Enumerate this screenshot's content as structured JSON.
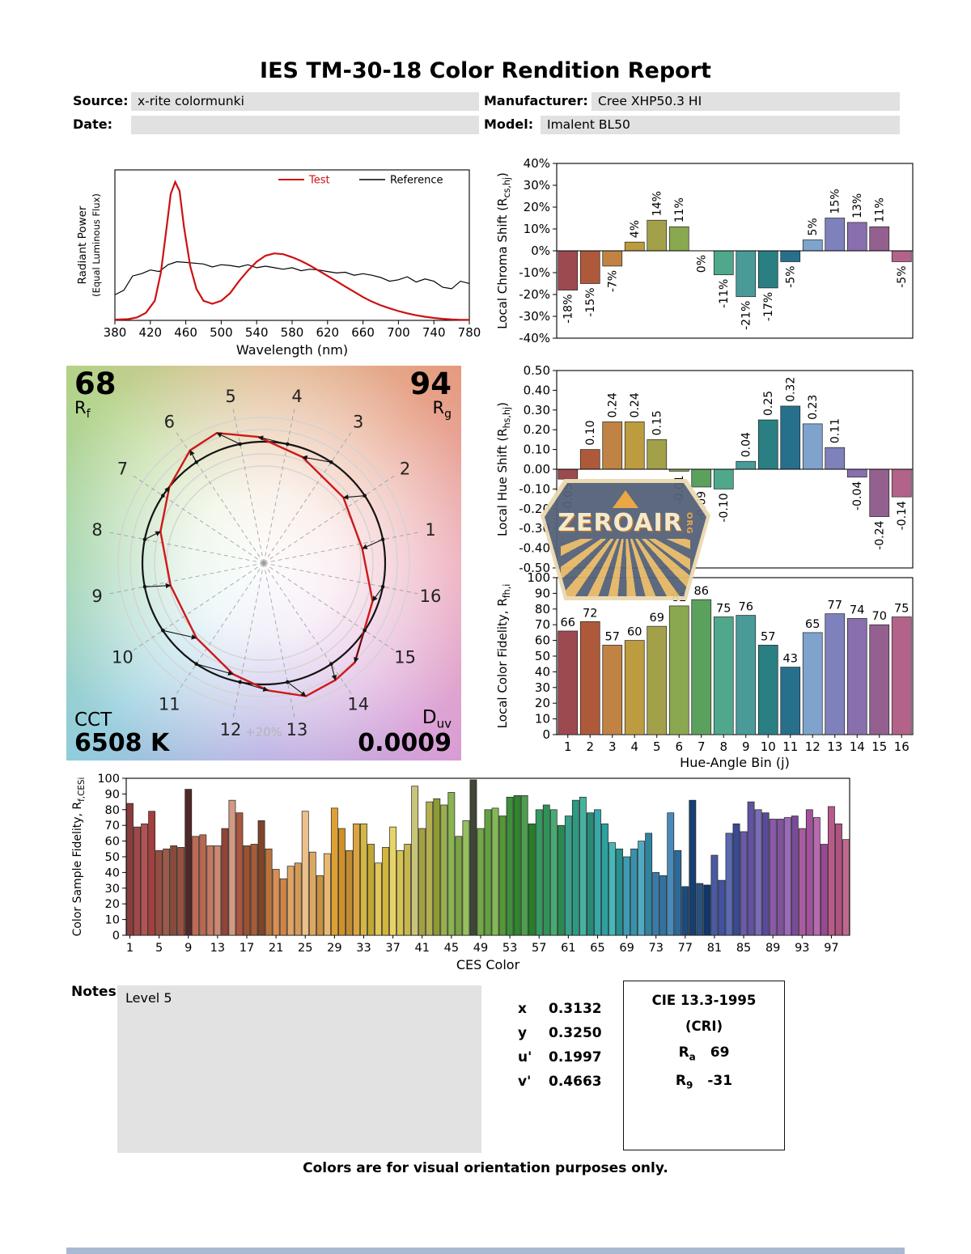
{
  "title": "IES TM-30-18 Color Rendition Report",
  "header": {
    "source_label": "Source:",
    "source_value": "x-rite colormunki",
    "manufacturer_label": "Manufacturer:",
    "manufacturer_value": "Cree XHP50.3 HI",
    "date_label": "Date:",
    "date_value": "",
    "model_label": "Model:",
    "model_value": "Imalent BL50"
  },
  "bin_colors": [
    "#9c4a50",
    "#ae5a3a",
    "#c08344",
    "#bd9c3f",
    "#a3a04a",
    "#8aa84f",
    "#5ca05e",
    "#4fa88c",
    "#4a9a9a",
    "#2a7f83",
    "#27708c",
    "#7fa3cc",
    "#7e81bb",
    "#8a6fae",
    "#94608f",
    "#b3638a"
  ],
  "chart_data": [
    {
      "id": "spd",
      "type": "line",
      "xlabel": "Wavelength (nm)",
      "ylabel": "Radiant Power",
      "ylabel2": "(Equal Luminous Flux)",
      "xlim": [
        380,
        780
      ],
      "ylim": [
        0,
        1
      ],
      "xticks": [
        380,
        420,
        460,
        500,
        540,
        580,
        620,
        660,
        700,
        740,
        780
      ],
      "series": [
        {
          "name": "Test",
          "color": "#cc1111",
          "x": [
            380,
            395,
            405,
            415,
            425,
            432,
            438,
            443,
            448,
            453,
            458,
            465,
            472,
            480,
            490,
            500,
            510,
            520,
            530,
            540,
            550,
            560,
            570,
            580,
            590,
            600,
            610,
            620,
            630,
            640,
            650,
            660,
            670,
            680,
            690,
            700,
            710,
            720,
            730,
            740,
            750,
            760,
            770,
            780
          ],
          "y": [
            0.005,
            0.008,
            0.02,
            0.05,
            0.13,
            0.32,
            0.6,
            0.84,
            0.92,
            0.86,
            0.62,
            0.36,
            0.21,
            0.13,
            0.11,
            0.13,
            0.18,
            0.26,
            0.33,
            0.39,
            0.43,
            0.445,
            0.44,
            0.42,
            0.395,
            0.365,
            0.33,
            0.295,
            0.26,
            0.225,
            0.19,
            0.155,
            0.125,
            0.1,
            0.08,
            0.062,
            0.047,
            0.034,
            0.024,
            0.016,
            0.01,
            0.006,
            0.004,
            0.003
          ]
        },
        {
          "name": "Reference",
          "color": "#000000",
          "x": [
            380,
            390,
            400,
            410,
            420,
            430,
            440,
            450,
            460,
            470,
            480,
            490,
            500,
            510,
            520,
            530,
            540,
            550,
            560,
            570,
            580,
            590,
            600,
            610,
            620,
            630,
            640,
            650,
            660,
            670,
            680,
            690,
            700,
            710,
            720,
            730,
            740,
            750,
            760,
            770,
            780
          ],
          "y": [
            0.17,
            0.2,
            0.295,
            0.31,
            0.335,
            0.325,
            0.37,
            0.39,
            0.385,
            0.38,
            0.375,
            0.355,
            0.37,
            0.365,
            0.355,
            0.37,
            0.35,
            0.36,
            0.35,
            0.34,
            0.35,
            0.33,
            0.34,
            0.335,
            0.325,
            0.315,
            0.32,
            0.3,
            0.31,
            0.3,
            0.285,
            0.26,
            0.27,
            0.29,
            0.255,
            0.275,
            0.26,
            0.22,
            0.21,
            0.26,
            0.245
          ]
        }
      ]
    },
    {
      "id": "chroma_shift",
      "type": "bar",
      "ylabel_parts": [
        [
          "Local Chroma Shift (R",
          false
        ],
        [
          "cs,hj",
          true
        ],
        [
          ")",
          false
        ]
      ],
      "ylim": [
        -40,
        40
      ],
      "yticks": [
        {
          "v": 40,
          "label": "40%"
        },
        {
          "v": 30,
          "label": "30%"
        },
        {
          "v": 20,
          "label": "20%"
        },
        {
          "v": 10,
          "label": "10%"
        },
        {
          "v": 0,
          "label": "0%"
        },
        {
          "v": -10,
          "label": "-10%"
        },
        {
          "v": -20,
          "label": "-20%"
        },
        {
          "v": -30,
          "label": "-30%"
        },
        {
          "v": -40,
          "label": "-40%"
        }
      ],
      "values": [
        -18,
        -15,
        -7,
        4,
        14,
        11,
        0,
        -11,
        -21,
        -17,
        -5,
        5,
        15,
        13,
        11,
        -5
      ],
      "value_labels": [
        "-18%",
        "-15%",
        "-7%",
        "4%",
        "14%",
        "11%",
        "0%",
        "-11%",
        "-21%",
        "-17%",
        "-5%",
        "5%",
        "15%",
        "13%",
        "11%",
        "-5%"
      ]
    },
    {
      "id": "hue_shift",
      "type": "bar",
      "ylabel_parts": [
        [
          "Local Hue Shift (R",
          false
        ],
        [
          "hs,hj",
          true
        ],
        [
          ")",
          false
        ]
      ],
      "ylim": [
        -0.5,
        0.5
      ],
      "yticks": [
        {
          "v": 0.5,
          "label": "0.50"
        },
        {
          "v": 0.4,
          "label": "0.40"
        },
        {
          "v": 0.3,
          "label": "0.30"
        },
        {
          "v": 0.2,
          "label": "0.20"
        },
        {
          "v": 0.1,
          "label": "0.10"
        },
        {
          "v": 0,
          "label": "0.00"
        },
        {
          "v": -0.1,
          "label": "-0.10"
        },
        {
          "v": -0.2,
          "label": "-0.20"
        },
        {
          "v": -0.3,
          "label": "-0.30"
        },
        {
          "v": -0.4,
          "label": "-0.40"
        },
        {
          "v": -0.5,
          "label": "-0.50"
        }
      ],
      "values": [
        -0.05,
        0.1,
        0.24,
        0.24,
        0.15,
        -0.01,
        -0.09,
        -0.1,
        0.04,
        0.25,
        0.32,
        0.23,
        0.11,
        -0.04,
        -0.24,
        -0.14
      ],
      "value_labels": [
        "-0.05",
        "0.10",
        "0.24",
        "0.24",
        "0.15",
        "-0.01",
        "-0.09",
        "-0.10",
        "0.04",
        "0.25",
        "0.32",
        "0.23",
        "0.11",
        "-0.04",
        "-0.24",
        "-0.14"
      ]
    },
    {
      "id": "local_fidelity",
      "type": "bar",
      "ylabel_parts": [
        [
          "Local Color Fidelity, R",
          false
        ],
        [
          "fh,i",
          true
        ]
      ],
      "xlabel": "Hue-Angle Bin (j)",
      "ylim": [
        0,
        100
      ],
      "yticks": [
        {
          "v": 100,
          "label": "100"
        },
        {
          "v": 90,
          "label": "90"
        },
        {
          "v": 80,
          "label": "80"
        },
        {
          "v": 70,
          "label": "70"
        },
        {
          "v": 60,
          "label": "60"
        },
        {
          "v": 50,
          "label": "50"
        },
        {
          "v": 40,
          "label": "40"
        },
        {
          "v": 30,
          "label": "30"
        },
        {
          "v": 20,
          "label": "20"
        },
        {
          "v": 10,
          "label": "10"
        },
        {
          "v": 0,
          "label": "0"
        }
      ],
      "values": [
        66,
        72,
        57,
        60,
        69,
        82,
        86,
        75,
        76,
        57,
        43,
        65,
        77,
        74,
        70,
        75
      ],
      "value_labels": [
        "66",
        "72",
        "57",
        "60",
        "69",
        "82",
        "86",
        "75",
        "76",
        "57",
        "43",
        "65",
        "77",
        "74",
        "70",
        "75"
      ],
      "xticks": [
        1,
        2,
        3,
        4,
        5,
        6,
        7,
        8,
        9,
        10,
        11,
        12,
        13,
        14,
        15,
        16
      ]
    },
    {
      "id": "ces_fidelity",
      "type": "bar",
      "ylabel_parts": [
        [
          "Color Sample Fidelity, R",
          false
        ],
        [
          "f,CESi",
          true
        ]
      ],
      "xlabel": "CES Color",
      "ylim": [
        0,
        100
      ],
      "yticks": [
        {
          "v": 100,
          "label": "100"
        },
        {
          "v": 90,
          "label": "90"
        },
        {
          "v": 80,
          "label": "80"
        },
        {
          "v": 70,
          "label": "70"
        },
        {
          "v": 60,
          "label": "60"
        },
        {
          "v": 50,
          "label": "50"
        },
        {
          "v": 40,
          "label": "40"
        },
        {
          "v": 30,
          "label": "30"
        },
        {
          "v": 20,
          "label": "20"
        },
        {
          "v": 10,
          "label": "10"
        },
        {
          "v": 0,
          "label": "0"
        }
      ],
      "values": [
        84,
        69,
        71,
        79,
        54,
        55,
        57,
        56,
        93,
        63,
        64,
        57,
        57,
        68,
        86,
        78,
        57,
        58,
        73,
        55,
        42,
        36,
        44,
        46,
        79,
        53,
        38,
        52,
        81,
        68,
        54,
        71,
        71,
        58,
        46,
        56,
        69,
        54,
        58,
        95,
        68,
        85,
        87,
        83,
        91,
        63,
        73,
        99,
        68,
        80,
        81,
        76,
        88,
        89,
        89,
        71,
        80,
        83,
        80,
        70,
        76,
        86,
        88,
        78,
        80,
        71,
        59,
        55,
        50,
        55,
        60,
        65,
        40,
        38,
        78,
        54,
        31,
        86,
        33,
        32,
        51,
        35,
        65,
        71,
        66,
        85,
        80,
        78,
        74,
        74,
        75,
        76,
        68,
        80,
        75,
        58,
        82,
        71,
        61
      ],
      "colors": [
        "#8a3c3c",
        "#a04848",
        "#b25252",
        "#a63e3e",
        "#944d3e",
        "#9c5a4a",
        "#8a4a3a",
        "#96523e",
        "#502828",
        "#c06a55",
        "#b86852",
        "#c47a62",
        "#cc8872",
        "#8f4538",
        "#d29a84",
        "#aa5640",
        "#9a5232",
        "#a65c36",
        "#7e452a",
        "#b9743d",
        "#d98e54",
        "#cf8448",
        "#e0a468",
        "#d49a58",
        "#ecc189",
        "#dca861",
        "#c89040",
        "#e8b873",
        "#dfa033",
        "#cf9126",
        "#bf8c32",
        "#dca43f",
        "#d2b744",
        "#c2a634",
        "#e2c75a",
        "#d2b63a",
        "#e6d468",
        "#d6c452",
        "#c6b74e",
        "#c8c47a",
        "#a4a040",
        "#b4b050",
        "#8e9a32",
        "#9aae4e",
        "#8ab452",
        "#7aa444",
        "#96c05e",
        "#3f4636",
        "#74a848",
        "#64a040",
        "#84b858",
        "#549838",
        "#3e8e3e",
        "#2e862e",
        "#4e9e4e",
        "#268026",
        "#379a60",
        "#2f9258",
        "#47aa74",
        "#278a50",
        "#35a28c",
        "#2d9a82",
        "#45b2a0",
        "#258a76",
        "#35a8a8",
        "#2da0a0",
        "#45b8b8",
        "#259090",
        "#3f9ab4",
        "#3792ac",
        "#4faac4",
        "#2f84a0",
        "#3a7aaa",
        "#3272a2",
        "#4a8aba",
        "#2a6a9a",
        "#1e4a7a",
        "#163f72",
        "#28527f",
        "#10366a",
        "#4a5aa2",
        "#4252a0",
        "#5a6ab2",
        "#3a4a92",
        "#6a5aaa",
        "#62529f",
        "#7a6ab8",
        "#5a4a9a",
        "#8a5aaa",
        "#8252a0",
        "#9a6ab8",
        "#7a4a9a",
        "#aa5aa2",
        "#a2529a",
        "#b86ab0",
        "#984a90",
        "#b85a8a",
        "#b05282",
        "#c06890"
      ],
      "xticks": [
        1,
        5,
        9,
        13,
        17,
        21,
        25,
        29,
        33,
        37,
        41,
        45,
        49,
        53,
        57,
        61,
        65,
        69,
        73,
        77,
        81,
        85,
        89,
        93,
        97
      ]
    },
    {
      "id": "cvg",
      "type": "polar_vector",
      "rf_value": "68",
      "rf_main": "R",
      "rf_sub": "f",
      "rg_value": "94",
      "rg_main": "R",
      "rg_sub": "g",
      "cct_label": "CCT",
      "cct_value": "6508 K",
      "duv_main": "D",
      "duv_sub": "uv",
      "duv_value": "0.0009",
      "ring_label": "+20%",
      "bin_labels": [
        "1",
        "2",
        "3",
        "4",
        "5",
        "6",
        "7",
        "8",
        "9",
        "10",
        "11",
        "12",
        "13",
        "14",
        "15",
        "16"
      ]
    }
  ],
  "watermark": {
    "name": "ZEROAIR",
    "org": "ORG"
  },
  "notes": {
    "label": "Notes:",
    "value": "Level 5"
  },
  "chromaticity": {
    "rows": [
      {
        "label": "x",
        "value": "0.3132"
      },
      {
        "label": "y",
        "value": "0.3250"
      },
      {
        "label": "u'",
        "value": "0.1997"
      },
      {
        "label": "v'",
        "value": "0.4663"
      }
    ]
  },
  "cri": {
    "title": "CIE 13.3-1995",
    "subtitle": "(CRI)",
    "rows": [
      {
        "main": "R",
        "sub": "a",
        "value": "69"
      },
      {
        "main": "R",
        "sub": "9",
        "value": "-31"
      }
    ]
  },
  "footer": "Colors are for visual orientation purposes only."
}
